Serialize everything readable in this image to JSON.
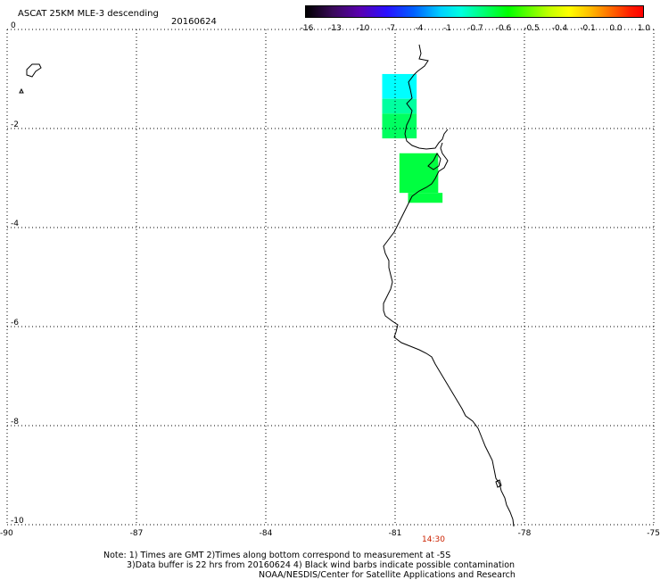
{
  "title": "ASCAT 25KM MLE-3 descending",
  "date": "20160624",
  "colorbar": {
    "labels": [
      "-16",
      "-13",
      "-10",
      "-7",
      "-4",
      "-1",
      "-0.7",
      "-0.6",
      "-0.5",
      "-0.4",
      "-0.1",
      "0.0",
      "1.0"
    ],
    "colors": [
      "#000000",
      "#5a00b0",
      "#2a10ff",
      "#00d0ff",
      "#00ff00",
      "#ffff00",
      "#ff7000",
      "#ff0000"
    ]
  },
  "axes": {
    "x_ticks": [
      "-90",
      "-87",
      "-84",
      "-81",
      "-78",
      "-75"
    ],
    "y_ticks": [
      "0",
      "-2",
      "-4",
      "-6",
      "-8",
      "-10"
    ],
    "x_range": [
      -90,
      -75
    ],
    "y_range": [
      -10,
      0
    ],
    "grid": true
  },
  "time_label": "14:30",
  "time_label_color": "#cc2200",
  "data_cells": [
    {
      "lon": [
        -81.3,
        -80.5
      ],
      "lat": [
        -0.9,
        -1.4
      ],
      "color": "#00ffff"
    },
    {
      "lon": [
        -81.3,
        -80.5
      ],
      "lat": [
        -1.4,
        -1.7
      ],
      "color": "#00ffa0"
    },
    {
      "lon": [
        -81.3,
        -80.5
      ],
      "lat": [
        -1.7,
        -2.2
      ],
      "color": "#00ff60"
    },
    {
      "lon": [
        -80.9,
        -80.0
      ],
      "lat": [
        -2.5,
        -3.3
      ],
      "color": "#00ff40"
    },
    {
      "lon": [
        -80.7,
        -79.9
      ],
      "lat": [
        -3.3,
        -3.5
      ],
      "color": "#00ff40"
    }
  ],
  "notes": [
    "Note: 1) Times are GMT 2)Times along bottom correspond to measurement at -5S",
    "3)Data buffer is 22 hrs from 20160624 4) Black wind barbs indicate possible contamination",
    "NOAA/NESDIS/Center for Satellite Applications and Research"
  ]
}
